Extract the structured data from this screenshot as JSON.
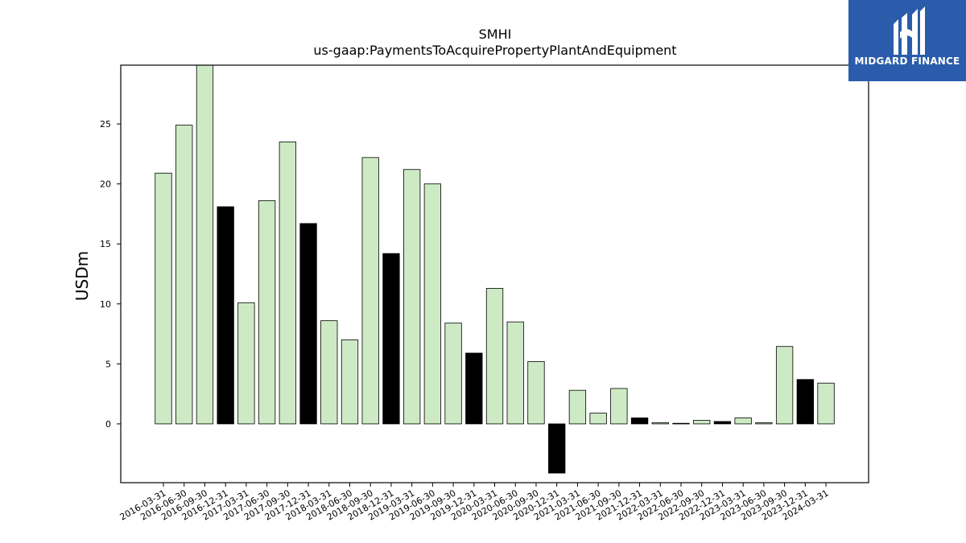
{
  "chart_data": {
    "type": "bar",
    "title": "SMHI",
    "subtitle": "us-gaap:PaymentsToAcquirePropertyPlantAndEquipment",
    "xlabel": "",
    "ylabel": "USDm",
    "ylim": [
      -4.9,
      29.9
    ],
    "yticks": [
      0,
      5,
      10,
      15,
      20,
      25
    ],
    "grid": false,
    "categories": [
      "2016-03-31",
      "2016-06-30",
      "2016-09-30",
      "2016-12-31",
      "2017-03-31",
      "2017-06-30",
      "2017-09-30",
      "2017-12-31",
      "2018-03-31",
      "2018-06-30",
      "2018-09-30",
      "2018-12-31",
      "2019-03-31",
      "2019-06-30",
      "2019-09-30",
      "2019-12-31",
      "2020-03-31",
      "2020-06-30",
      "2020-09-30",
      "2020-12-31",
      "2021-03-31",
      "2021-06-30",
      "2021-09-30",
      "2021-12-31",
      "2022-03-31",
      "2022-06-30",
      "2022-09-30",
      "2022-12-31",
      "2023-03-31",
      "2023-06-30",
      "2023-09-30",
      "2023-12-31",
      "2024-03-31"
    ],
    "values": [
      20.9,
      24.9,
      29.9,
      18.1,
      10.1,
      18.6,
      23.5,
      16.7,
      8.6,
      7.0,
      22.2,
      14.2,
      21.2,
      20.0,
      8.4,
      5.9,
      11.3,
      8.5,
      5.2,
      -4.1,
      2.8,
      0.9,
      2.95,
      0.5,
      0.1,
      0.05,
      0.3,
      0.2,
      0.5,
      0.1,
      6.45,
      3.7,
      3.4
    ],
    "colors": {
      "quarter": "#cdeac5",
      "year_end": "#000000",
      "edge": "#000000"
    }
  },
  "logo": {
    "text": "MIDGARD FINANCE",
    "background": "#2b5cab"
  }
}
